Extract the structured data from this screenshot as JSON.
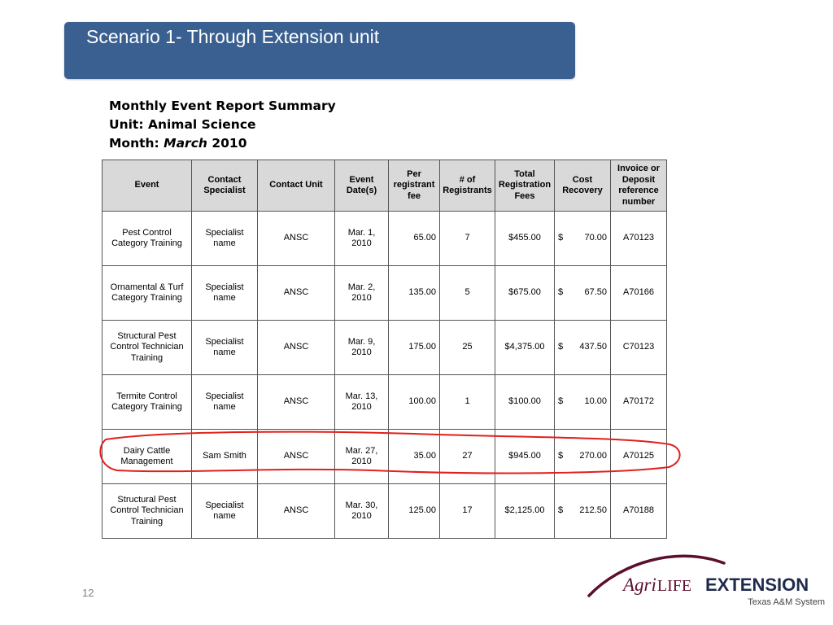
{
  "slide": {
    "title": "Scenario 1- Through Extension unit",
    "page_number": "12"
  },
  "report": {
    "heading": "Monthly Event Report Summary",
    "unit_label": "Unit:",
    "unit_value": "Animal Science",
    "month_label": "Month:",
    "month_name": "March",
    "month_year": "2010"
  },
  "table": {
    "headers": [
      "Event",
      "Contact Specialist",
      "Contact  Unit",
      "Event Date(s)",
      "Per registrant fee",
      "# of Registrants",
      "Total Registration Fees",
      "Cost Recovery",
      "Invoice or Deposit reference number"
    ],
    "rows": [
      {
        "event": "Pest Control Category Training",
        "specialist": "Specialist name",
        "unit": "ANSC",
        "date": "Mar. 1, 2010",
        "fee": "65.00",
        "registrants": "7",
        "total": "$455.00",
        "cost_symbol": "$",
        "cost": "70.00",
        "ref": "A70123"
      },
      {
        "event": "Ornamental & Turf Category Training",
        "specialist": "Specialist name",
        "unit": "ANSC",
        "date": "Mar. 2, 2010",
        "fee": "135.00",
        "registrants": "5",
        "total": "$675.00",
        "cost_symbol": "$",
        "cost": "67.50",
        "ref": "A70166"
      },
      {
        "event": "Structural Pest Control Technician Training",
        "specialist": "Specialist name",
        "unit": "ANSC",
        "date": "Mar. 9, 2010",
        "fee": "175.00",
        "registrants": "25",
        "total": "$4,375.00",
        "cost_symbol": "$",
        "cost": "437.50",
        "ref": "C70123"
      },
      {
        "event": "Termite Control Category Training",
        "specialist": "Specialist name",
        "unit": "ANSC",
        "date": "Mar. 13, 2010",
        "fee": "100.00",
        "registrants": "1",
        "total": "$100.00",
        "cost_symbol": "$",
        "cost": "10.00",
        "ref": "A70172"
      },
      {
        "event": "Dairy Cattle Management",
        "specialist": "Sam Smith",
        "unit": "ANSC",
        "date": "Mar. 27, 2010",
        "fee": "35.00",
        "registrants": "27",
        "total": "$945.00",
        "cost_symbol": "$",
        "cost": "270.00",
        "ref": "A70125"
      },
      {
        "event": "Structural Pest Control Technician Training",
        "specialist": "Specialist name",
        "unit": "ANSC",
        "date": "Mar. 30, 2010",
        "fee": "125.00",
        "registrants": "17",
        "total": "$2,125.00",
        "cost_symbol": "$",
        "cost": "212.50",
        "ref": "A70188"
      }
    ]
  },
  "logo": {
    "agri": "Agri",
    "life": "LIFE",
    "extension": "EXTENSION",
    "tagline": "Texas A&M System",
    "color_maroon": "#5b0f2e",
    "color_navy": "#1f2b4d"
  },
  "colors": {
    "title_bar": "#3a6091",
    "header_fill": "#d9d9d9",
    "highlight_red": "#e0201c"
  }
}
